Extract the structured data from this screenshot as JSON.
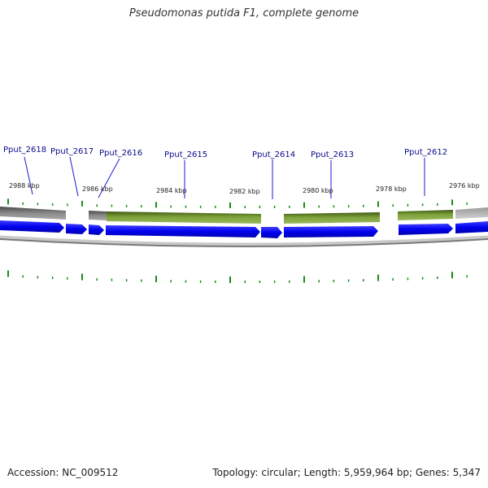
{
  "title": "Pseudomonas putida F1, complete genome",
  "genes": [
    {
      "name": "Pput_2618",
      "strand": "+"
    },
    {
      "name": "Pput_2617",
      "strand": "+"
    },
    {
      "name": "Pput_2616",
      "strand": "+"
    },
    {
      "name": "Pput_2615",
      "strand": "+"
    },
    {
      "name": "Pput_2614",
      "strand": "+"
    },
    {
      "name": "Pput_2613",
      "strand": "+"
    },
    {
      "name": "Pput_2612",
      "strand": "+"
    }
  ],
  "scale_labels": [
    "2988 kbp",
    "2986 kbp",
    "2984 kbp",
    "2982 kbp",
    "2980 kbp",
    "2978 kbp",
    "2976 kbp"
  ],
  "colors": {
    "cds": "#0000ee",
    "feature": "#6b8e23",
    "neutral": "#777777",
    "tick": "#1a8a1a",
    "label": "#0a0a8a",
    "leader": "#1a1ad0"
  },
  "footer": {
    "accession": "Accession: NC_009512",
    "stats": "Topology: circular; Length: 5,959,964 bp; Genes: 5,347"
  }
}
